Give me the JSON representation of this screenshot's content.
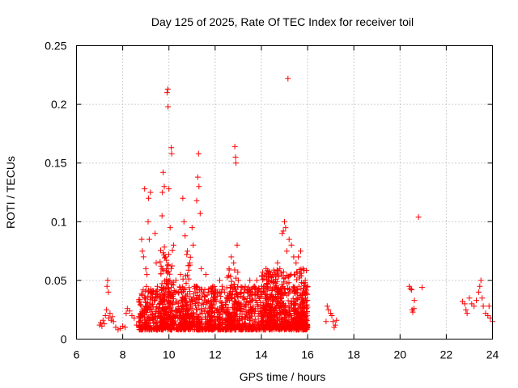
{
  "chart_data": {
    "type": "scatter",
    "title": "Day 125 of 2025, Rate Of TEC Index for receiver toil",
    "xlabel": "GPS time / hours",
    "ylabel": "ROTI / TECUs",
    "xlim": [
      6,
      24
    ],
    "ylim": [
      0,
      0.25
    ],
    "xticks": [
      6,
      8,
      10,
      12,
      14,
      16,
      18,
      20,
      22,
      24
    ],
    "xtick_labels": [
      "6",
      "8",
      "10",
      "12",
      "14",
      "16",
      "18",
      "20",
      "22",
      "24"
    ],
    "yticks": [
      0,
      0.05,
      0.1,
      0.15,
      0.2,
      0.25
    ],
    "ytick_labels": [
      "0",
      "0.05",
      "0.1",
      "0.15",
      "0.2",
      "0.25"
    ],
    "grid": true,
    "marker": "+",
    "series": [
      {
        "name": "ROTI",
        "color": "#ff0000",
        "points": [
          [
            7.0,
            0.012
          ],
          [
            7.05,
            0.014
          ],
          [
            7.1,
            0.011
          ],
          [
            7.15,
            0.016
          ],
          [
            7.2,
            0.013
          ],
          [
            7.25,
            0.02
          ],
          [
            7.3,
            0.025
          ],
          [
            7.32,
            0.045
          ],
          [
            7.35,
            0.05
          ],
          [
            7.38,
            0.04
          ],
          [
            7.4,
            0.018
          ],
          [
            7.45,
            0.022
          ],
          [
            7.5,
            0.016
          ],
          [
            7.55,
            0.019
          ],
          [
            7.6,
            0.015
          ],
          [
            7.7,
            0.01
          ],
          [
            7.8,
            0.008
          ],
          [
            7.9,
            0.009
          ],
          [
            8.0,
            0.011
          ],
          [
            8.1,
            0.01
          ],
          [
            8.15,
            0.022
          ],
          [
            8.2,
            0.026
          ],
          [
            8.3,
            0.024
          ],
          [
            8.4,
            0.02
          ],
          [
            8.5,
            0.018
          ],
          [
            8.6,
            0.012
          ],
          [
            8.7,
            0.015
          ],
          [
            8.8,
            0.02
          ],
          [
            8.82,
            0.085
          ],
          [
            8.85,
            0.075
          ],
          [
            8.9,
            0.07
          ],
          [
            8.95,
            0.128
          ],
          [
            9.0,
            0.06
          ],
          [
            9.05,
            0.055
          ],
          [
            9.1,
            0.1
          ],
          [
            9.12,
            0.12
          ],
          [
            9.15,
            0.085
          ],
          [
            9.2,
            0.125
          ],
          [
            9.25,
            0.04
          ],
          [
            9.3,
            0.035
          ],
          [
            9.4,
            0.09
          ],
          [
            9.45,
            0.065
          ],
          [
            9.5,
            0.045
          ],
          [
            9.6,
            0.03
          ],
          [
            9.7,
            0.105
          ],
          [
            9.72,
            0.125
          ],
          [
            9.75,
            0.142
          ],
          [
            9.8,
            0.13
          ],
          [
            9.85,
            0.07
          ],
          [
            9.9,
            0.06
          ],
          [
            9.92,
            0.21
          ],
          [
            9.95,
            0.213
          ],
          [
            9.96,
            0.198
          ],
          [
            10.0,
            0.128
          ],
          [
            10.05,
            0.095
          ],
          [
            10.1,
            0.163
          ],
          [
            10.12,
            0.158
          ],
          [
            10.2,
            0.08
          ],
          [
            10.3,
            0.05
          ],
          [
            10.4,
            0.04
          ],
          [
            10.5,
            0.055
          ],
          [
            10.6,
            0.12
          ],
          [
            10.65,
            0.1
          ],
          [
            10.7,
            0.088
          ],
          [
            10.8,
            0.075
          ],
          [
            10.9,
            0.065
          ],
          [
            11.0,
            0.095
          ],
          [
            11.05,
            0.08
          ],
          [
            11.1,
            0.045
          ],
          [
            11.2,
            0.118
          ],
          [
            11.25,
            0.138
          ],
          [
            11.28,
            0.158
          ],
          [
            11.3,
            0.13
          ],
          [
            11.35,
            0.107
          ],
          [
            11.4,
            0.06
          ],
          [
            11.5,
            0.04
          ],
          [
            11.6,
            0.055
          ],
          [
            11.7,
            0.04
          ],
          [
            11.8,
            0.03
          ],
          [
            11.9,
            0.045
          ],
          [
            12.0,
            0.035
          ],
          [
            12.1,
            0.04
          ],
          [
            12.2,
            0.05
          ],
          [
            12.3,
            0.045
          ],
          [
            12.4,
            0.04
          ],
          [
            12.5,
            0.035
          ],
          [
            12.6,
            0.06
          ],
          [
            12.7,
            0.07
          ],
          [
            12.8,
            0.065
          ],
          [
            12.85,
            0.164
          ],
          [
            12.88,
            0.155
          ],
          [
            12.9,
            0.15
          ],
          [
            12.95,
            0.08
          ],
          [
            13.0,
            0.05
          ],
          [
            13.1,
            0.04
          ],
          [
            13.2,
            0.035
          ],
          [
            13.3,
            0.045
          ],
          [
            13.4,
            0.04
          ],
          [
            13.5,
            0.05
          ],
          [
            13.6,
            0.04
          ],
          [
            13.7,
            0.045
          ],
          [
            13.8,
            0.05
          ],
          [
            13.9,
            0.035
          ],
          [
            14.0,
            0.04
          ],
          [
            14.1,
            0.045
          ],
          [
            14.2,
            0.06
          ],
          [
            14.3,
            0.05
          ],
          [
            14.4,
            0.055
          ],
          [
            14.5,
            0.048
          ],
          [
            14.6,
            0.055
          ],
          [
            14.7,
            0.065
          ],
          [
            14.8,
            0.06
          ],
          [
            14.9,
            0.09
          ],
          [
            14.95,
            0.092
          ],
          [
            15.0,
            0.1
          ],
          [
            15.05,
            0.095
          ],
          [
            15.1,
            0.075
          ],
          [
            15.15,
            0.222
          ],
          [
            15.2,
            0.085
          ],
          [
            15.3,
            0.08
          ],
          [
            15.4,
            0.07
          ],
          [
            15.5,
            0.065
          ],
          [
            15.6,
            0.07
          ],
          [
            15.7,
            0.075
          ],
          [
            15.8,
            0.06
          ],
          [
            15.9,
            0.05
          ],
          [
            16.0,
            0.045
          ],
          [
            16.8,
            0.015
          ],
          [
            16.85,
            0.028
          ],
          [
            16.9,
            0.025
          ],
          [
            17.0,
            0.022
          ],
          [
            17.05,
            0.02
          ],
          [
            17.1,
            0.015
          ],
          [
            17.15,
            0.01
          ],
          [
            17.2,
            0.012
          ],
          [
            17.25,
            0.016
          ],
          [
            20.4,
            0.045
          ],
          [
            20.45,
            0.043
          ],
          [
            20.5,
            0.042
          ],
          [
            20.52,
            0.025
          ],
          [
            20.55,
            0.023
          ],
          [
            20.6,
            0.026
          ],
          [
            20.62,
            0.033
          ],
          [
            20.8,
            0.104
          ],
          [
            20.95,
            0.044
          ],
          [
            22.7,
            0.032
          ],
          [
            22.8,
            0.03
          ],
          [
            22.85,
            0.025
          ],
          [
            22.9,
            0.022
          ],
          [
            23.0,
            0.035
          ],
          [
            23.1,
            0.03
          ],
          [
            23.2,
            0.028
          ],
          [
            23.3,
            0.033
          ],
          [
            23.4,
            0.04
          ],
          [
            23.45,
            0.045
          ],
          [
            23.5,
            0.05
          ],
          [
            23.55,
            0.035
          ],
          [
            23.6,
            0.028
          ],
          [
            23.7,
            0.022
          ],
          [
            23.8,
            0.02
          ],
          [
            23.85,
            0.028
          ],
          [
            23.9,
            0.018
          ],
          [
            24.0,
            0.015
          ]
        ],
        "dense_clusters": [
          {
            "x_range": [
              8.7,
              16.0
            ],
            "y_range": [
              0.008,
              0.045
            ],
            "count": 1600
          },
          {
            "x_range": [
              14.0,
              16.0
            ],
            "y_range": [
              0.01,
              0.06
            ],
            "count": 350
          },
          {
            "x_range": [
              9.6,
              10.2
            ],
            "y_range": [
              0.01,
              0.08
            ],
            "count": 120
          },
          {
            "x_range": [
              12.5,
              13.0
            ],
            "y_range": [
              0.01,
              0.06
            ],
            "count": 80
          },
          {
            "x_range": [
              10.6,
              11.0
            ],
            "y_range": [
              0.01,
              0.075
            ],
            "count": 60
          }
        ]
      }
    ]
  }
}
